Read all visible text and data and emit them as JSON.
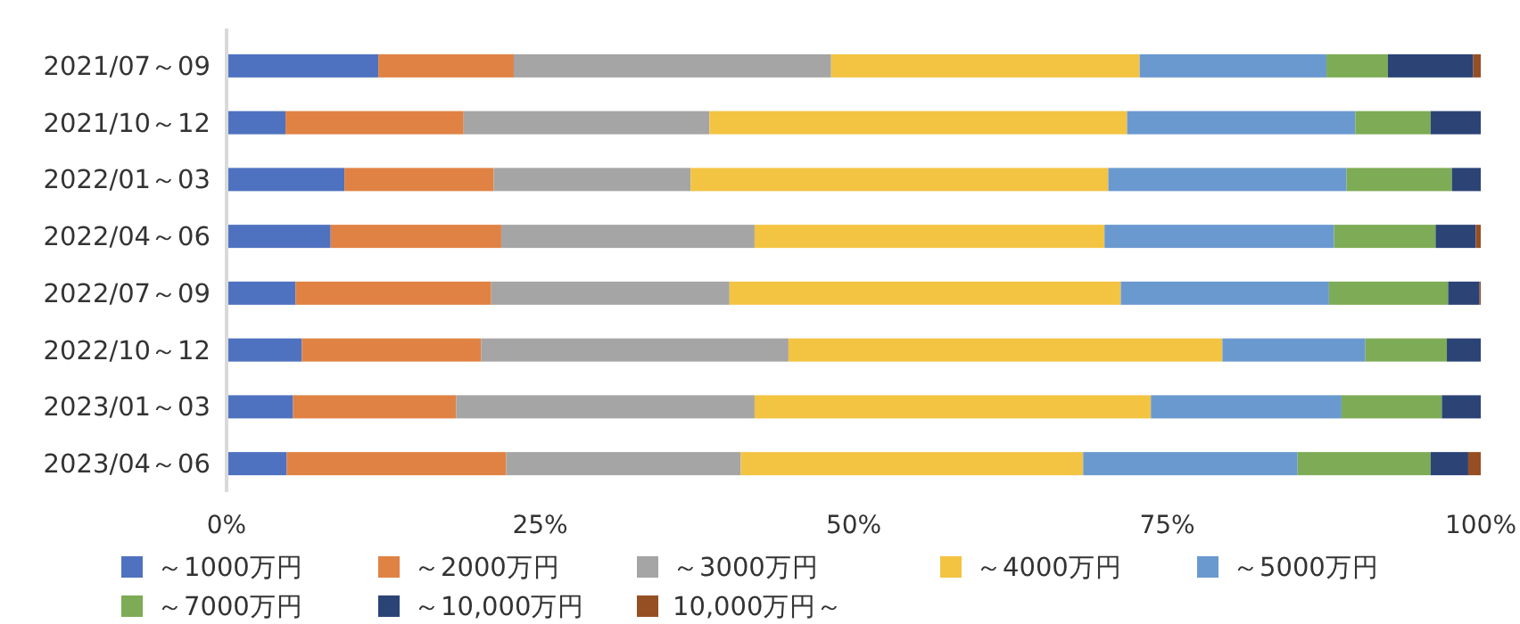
{
  "chart_data": {
    "type": "bar",
    "orientation": "horizontal",
    "stacked": true,
    "legend": "bottom",
    "grid": false,
    "categories": [
      "2021/07～09",
      "2021/10～12",
      "2022/01～03",
      "2022/04～06",
      "2022/07～09",
      "2022/10～12",
      "2023/01～03",
      "2023/04～06"
    ],
    "xlim": [
      0,
      100
    ],
    "xticks": [
      {
        "value": 0,
        "label": "0%"
      },
      {
        "value": 25,
        "label": "25%"
      },
      {
        "value": 50,
        "label": "50%"
      },
      {
        "value": 75,
        "label": "75%"
      },
      {
        "value": 100,
        "label": "100%"
      }
    ],
    "series": [
      {
        "name": "～1000万円",
        "color": "#4f72c0",
        "values": [
          12.1,
          4.7,
          9.4,
          8.3,
          5.5,
          6.0,
          5.3,
          4.8
        ]
      },
      {
        "name": "～2000万円",
        "color": "#e08244",
        "values": [
          10.8,
          14.2,
          11.9,
          13.6,
          15.6,
          14.3,
          13.0,
          17.5
        ]
      },
      {
        "name": "～3000万円",
        "color": "#a5a5a5",
        "values": [
          25.3,
          19.6,
          15.7,
          20.2,
          19.0,
          24.5,
          23.8,
          18.7
        ]
      },
      {
        "name": "～4000万円",
        "color": "#f3c342",
        "values": [
          24.6,
          33.3,
          33.3,
          27.9,
          31.2,
          34.6,
          31.6,
          27.3
        ]
      },
      {
        "name": "～5000万円",
        "color": "#6a99d0",
        "values": [
          14.9,
          18.2,
          19.0,
          18.3,
          16.6,
          11.4,
          15.2,
          17.1
        ]
      },
      {
        "name": "～7000万円",
        "color": "#7eab55",
        "values": [
          4.9,
          6.0,
          8.4,
          8.1,
          9.5,
          6.5,
          8.0,
          10.6
        ]
      },
      {
        "name": "～10,000万円",
        "color": "#2c4376",
        "values": [
          6.8,
          4.0,
          2.3,
          3.2,
          2.5,
          2.7,
          3.1,
          3.0
        ]
      },
      {
        "name": "10,000万円～",
        "color": "#954f23",
        "values": [
          0.6,
          0,
          0,
          0.4,
          0.1,
          0,
          0,
          1.0
        ]
      }
    ]
  }
}
